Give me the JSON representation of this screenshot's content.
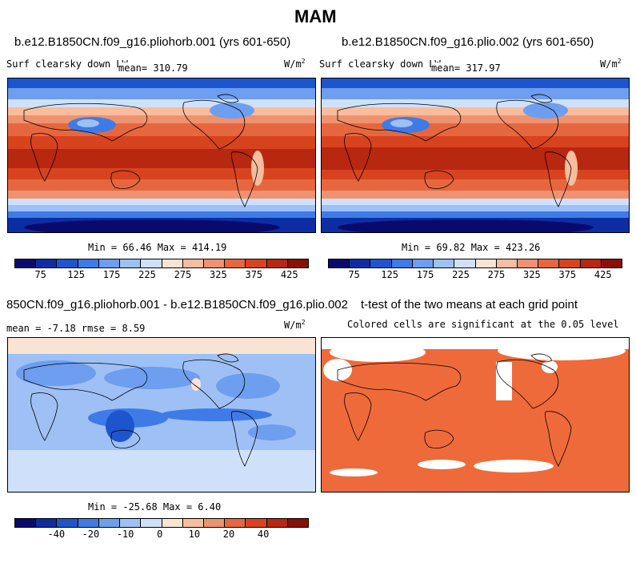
{
  "figure_title": "MAM",
  "panels": [
    {
      "id": "p1",
      "title": "b.e12.B1850CN.f09_g16.pliohorb.001 (yrs 601-650)",
      "var_label": "Surf clearsky down LW",
      "mean_label": "mean= 310.79",
      "units_label": "W/m",
      "units_sup": "2",
      "minmax_label": "Min =   66.46  Max =  414.19",
      "colorbar_ticks": [
        "75",
        "125",
        "175",
        "225",
        "275",
        "325",
        "375",
        "425"
      ]
    },
    {
      "id": "p2",
      "title": "b.e12.B1850CN.f09_g16.plio.002 (yrs 601-650)",
      "var_label": "Surf clearsky down LW",
      "mean_label": "mean= 317.97",
      "units_label": "W/m",
      "units_sup": "2",
      "minmax_label": "Min =   69.82  Max =  423.26",
      "colorbar_ticks": [
        "75",
        "125",
        "175",
        "225",
        "275",
        "325",
        "375",
        "425"
      ]
    },
    {
      "id": "p3",
      "title": "850CN.f09_g16.pliohorb.001 - b.e12.B1850CN.f09_g16.plio.002",
      "stats_label": "mean =   -7.18     rmse =    8.59",
      "units_label": "W/m",
      "units_sup": "2",
      "minmax_label": "Min = -25.68  Max =    6.40",
      "colorbar_ticks": [
        "-40",
        "-20",
        "-10",
        "0",
        "10",
        "20",
        "40"
      ]
    },
    {
      "id": "p4",
      "title": "t-test of the two means at each grid point",
      "note_label": "Colored cells are significant at the 0.05 level"
    }
  ],
  "colors": {
    "abs_scale": [
      "#0a0a6e",
      "#0d2ea3",
      "#1d55cf",
      "#3f7be6",
      "#6d9eef",
      "#9ec0f5",
      "#cfe1fa",
      "#fbe3d3",
      "#f7bd9f",
      "#ef9270",
      "#e6673f",
      "#d8431f",
      "#b8270f",
      "#8a0f05"
    ],
    "diff_scale": [
      "#0a0a6e",
      "#0d2ea3",
      "#1d55cf",
      "#3f7be6",
      "#6d9eef",
      "#9ec0f5",
      "#cfe1fa",
      "#fbe3d3",
      "#f7bd9f",
      "#ef9270",
      "#e6673f",
      "#d8431f",
      "#b8270f",
      "#8a0f05"
    ],
    "significant": "#ef6a3a"
  }
}
